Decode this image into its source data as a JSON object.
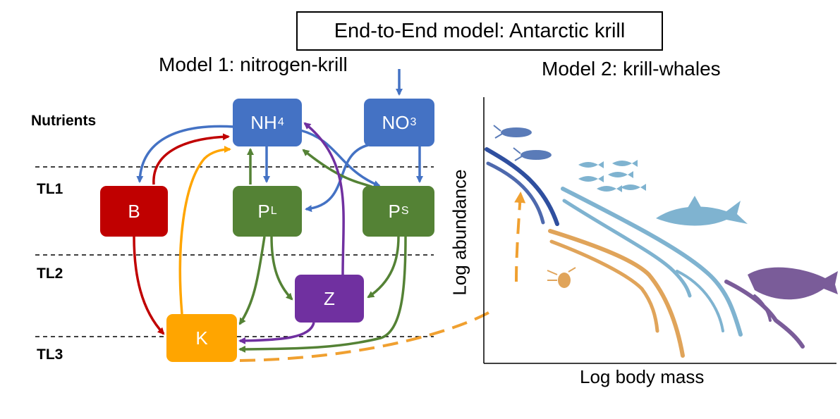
{
  "title": "End-to-End model: Antarctic krill",
  "model1_title": "Model 1: nitrogen-krill",
  "model2_title": "Model 2: krill-whales",
  "levels": {
    "nutrients": "Nutrients",
    "tl1": "TL1",
    "tl2": "TL2",
    "tl3": "TL3"
  },
  "nodes": {
    "nh4": {
      "label": "NH",
      "sub": "4",
      "color": "#4472C4"
    },
    "no3": {
      "label": "NO",
      "sub": "3",
      "color": "#4472C4"
    },
    "b": {
      "label": "B",
      "sub": "",
      "color": "#C00000"
    },
    "pl": {
      "label": "P",
      "sub": "L",
      "color": "#548235"
    },
    "ps": {
      "label": "P",
      "sub": "S",
      "color": "#548235"
    },
    "z": {
      "label": "Z",
      "sub": "",
      "color": "#7030A0"
    },
    "k": {
      "label": "K",
      "sub": "",
      "color": "#FFA500"
    }
  },
  "size_spectrum": {
    "ylabel": "Log abundance",
    "xlabel": "Log body mass",
    "colors": {
      "krill": "#2F4F9F",
      "fish": "#7FB3D0",
      "zooplankton": "#E0A45A",
      "whales": "#7A5C99"
    },
    "icons": [
      "krill-icon",
      "fish-school-icon",
      "shark-icon",
      "crustacean-icon",
      "whale-icon"
    ]
  }
}
